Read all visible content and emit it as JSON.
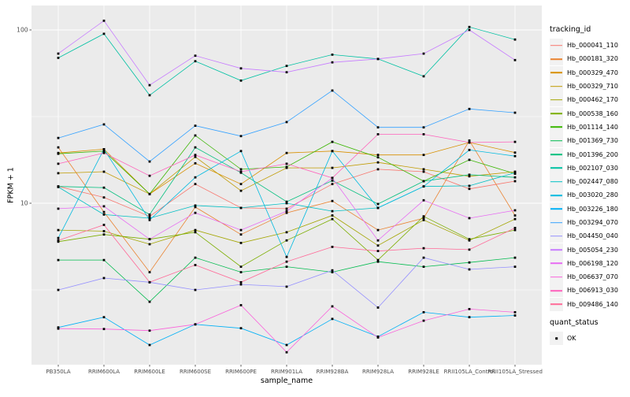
{
  "theme": {
    "panel_bg": "#EBEBEB",
    "grid_color": "#FFFFFF",
    "tick_mark_color": "#333333",
    "tick_label_color": "#4D4D4D",
    "point_color": "#000000",
    "legend_key_bg": "#F2F2F2"
  },
  "chart_data": {
    "type": "line",
    "title": "",
    "xlabel": "sample_name",
    "ylabel": "FPKM + 1",
    "y_scale": "log10",
    "ylim": [
      1.1,
      140
    ],
    "y_major_ticks": [
      100,
      10
    ],
    "y_minor_breaks": [
      31.62,
      3.162
    ],
    "grid": true,
    "legend_position": "right",
    "point_marker": "filled-square",
    "color_legend_title": "tracking_id",
    "shape_legend_title": "quant_status",
    "shape_legend_items": [
      "OK"
    ],
    "categories": [
      "PB350LA",
      "RRIM600LA",
      "RRIM600LE",
      "RRIM600SE",
      "RRIM600PE",
      "RRIM901LA",
      "RRIM928BA",
      "RRIM928LA",
      "RRIM928LE",
      "RRII105LA_Control",
      "RRII105LA_Stressed"
    ],
    "series": [
      {
        "name": "Hb_000041_110",
        "color": "#F8766D",
        "values": [
          12.5,
          10.8,
          8.4,
          12.9,
          9.4,
          9.3,
          12.9,
          15.7,
          15.2,
          12.1,
          13.4
        ]
      },
      {
        "name": "Hb_000181_320",
        "color": "#EA8331",
        "values": [
          21.0,
          8.9,
          4.0,
          9.5,
          6.6,
          8.8,
          10.3,
          7.0,
          8.2,
          23.0,
          8.5
        ]
      },
      {
        "name": "Hb_000329_470",
        "color": "#D89000",
        "values": [
          19.5,
          20.5,
          11.3,
          17.0,
          12.9,
          19.5,
          20.0,
          19.0,
          19.0,
          22.4,
          19.6
        ]
      },
      {
        "name": "Hb_000329_710",
        "color": "#C09B00",
        "values": [
          14.9,
          15.2,
          11.3,
          18.5,
          11.8,
          16.0,
          16.0,
          17.2,
          15.7,
          14.3,
          15.2
        ]
      },
      {
        "name": "Hb_000462_170",
        "color": "#A3A500",
        "values": [
          7.0,
          6.9,
          5.8,
          7.0,
          5.9,
          6.8,
          8.5,
          5.7,
          8.0,
          6.1,
          8.1
        ]
      },
      {
        "name": "Hb_000538_160",
        "color": "#7CAE00",
        "values": [
          6.0,
          6.6,
          6.2,
          6.8,
          4.3,
          6.1,
          8.1,
          4.7,
          8.4,
          6.2,
          7.0
        ]
      },
      {
        "name": "Hb_001114_140",
        "color": "#39B600",
        "values": [
          19.3,
          20.0,
          11.3,
          24.6,
          15.7,
          16.2,
          22.6,
          18.4,
          13.4,
          17.8,
          14.8
        ]
      },
      {
        "name": "Hb_001369_730",
        "color": "#00BB4E",
        "values": [
          4.7,
          4.7,
          2.7,
          4.85,
          4.0,
          4.3,
          4.0,
          4.6,
          4.3,
          4.55,
          4.85
        ]
      },
      {
        "name": "Hb_001396_200",
        "color": "#00BF7D",
        "values": [
          12.5,
          12.3,
          8.6,
          21.0,
          15.0,
          10.2,
          13.5,
          9.9,
          13.4,
          14.6,
          14.1
        ]
      },
      {
        "name": "Hb_002107_030",
        "color": "#00C1A3",
        "values": [
          69,
          95,
          42,
          66,
          51,
          62,
          72,
          68,
          54,
          104,
          88
        ]
      },
      {
        "name": "Hb_002447_080",
        "color": "#00BFC4",
        "values": [
          12.4,
          8.6,
          8.2,
          9.7,
          9.4,
          10.0,
          9.0,
          9.4,
          12.5,
          12.6,
          15.0
        ]
      },
      {
        "name": "Hb_003020_280",
        "color": "#00BAE0",
        "values": [
          6.3,
          20.5,
          8.0,
          14.1,
          20.0,
          4.9,
          20.0,
          9.4,
          12.5,
          20.3,
          18.7
        ]
      },
      {
        "name": "Hb_003226_180",
        "color": "#00B0F6",
        "values": [
          1.92,
          2.2,
          1.52,
          2.0,
          1.9,
          1.52,
          2.15,
          1.7,
          2.35,
          2.2,
          2.25
        ]
      },
      {
        "name": "Hb_003294_070",
        "color": "#35A2FF",
        "values": [
          23.8,
          28.5,
          17.4,
          28.0,
          24.4,
          29.4,
          44.7,
          27.4,
          27.4,
          35.0,
          33.3
        ]
      },
      {
        "name": "Hb_004450_040",
        "color": "#9590FF",
        "values": [
          3.16,
          3.7,
          3.5,
          3.16,
          3.4,
          3.3,
          4.1,
          2.5,
          4.85,
          4.15,
          4.3
        ]
      },
      {
        "name": "Hb_005054_230",
        "color": "#C77CFF",
        "values": [
          73,
          113,
          48,
          71,
          60,
          57,
          65,
          68,
          73,
          100,
          67
        ]
      },
      {
        "name": "Hb_006198_120",
        "color": "#E76BF3",
        "values": [
          9.3,
          9.6,
          6.2,
          8.8,
          7.0,
          9.0,
          14.0,
          6.1,
          10.4,
          8.2,
          9.1
        ]
      },
      {
        "name": "Hb_006637_070",
        "color": "#FA62DB",
        "values": [
          1.89,
          1.88,
          1.84,
          2.0,
          2.58,
          1.38,
          2.54,
          1.68,
          2.1,
          2.45,
          2.35
        ]
      },
      {
        "name": "Hb_006913_030",
        "color": "#FF62BC",
        "values": [
          16.9,
          19.5,
          14.4,
          19.0,
          15.2,
          16.9,
          14.0,
          25.0,
          25.0,
          22.4,
          22.6
        ]
      },
      {
        "name": "Hb_009486_140",
        "color": "#FF6A98",
        "values": [
          6.1,
          7.5,
          3.5,
          4.4,
          3.5,
          4.6,
          5.6,
          5.3,
          5.5,
          5.4,
          7.2
        ]
      }
    ]
  }
}
